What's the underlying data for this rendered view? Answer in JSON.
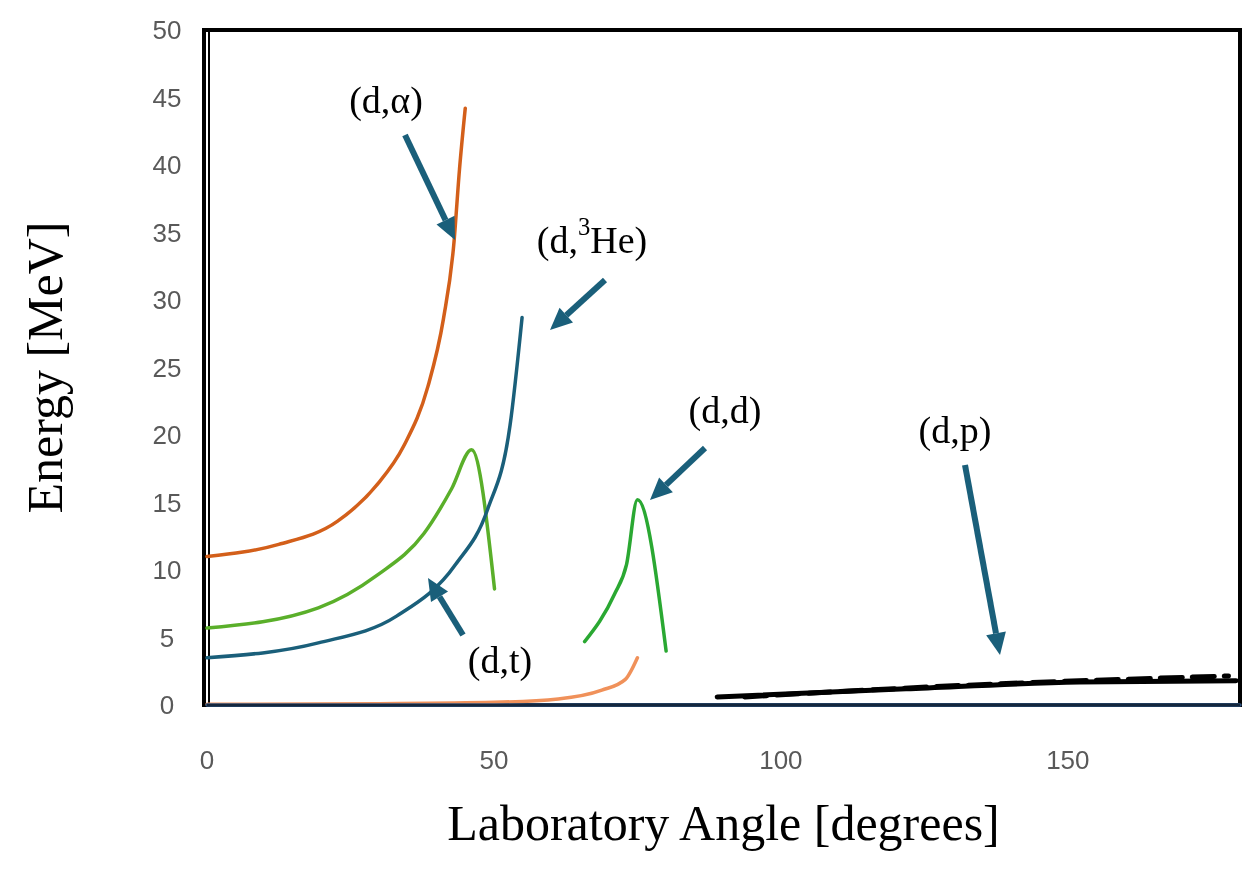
{
  "chart_data": {
    "type": "line",
    "xlabel": "Laboratory Angle [degrees]",
    "ylabel": "Energy [MeV]",
    "xlim": [
      0,
      180
    ],
    "ylim": [
      0,
      50
    ],
    "xticks": [
      0,
      50,
      100,
      150
    ],
    "yticks": [
      0,
      5,
      10,
      15,
      20,
      25,
      30,
      35,
      40,
      45,
      50
    ],
    "grid": false,
    "marker": "none",
    "series": [
      {
        "color": "#d35f1a",
        "x": [
          0,
          12.5,
          22.7,
          29.6,
          34.3,
          38.5,
          41.2,
          43,
          44,
          45
        ],
        "values": [
          11,
          11.9,
          13.6,
          16.3,
          19.2,
          23.6,
          28.6,
          34.1,
          39.7,
          44.2
        ]
      },
      {
        "color": "#5aaf2a",
        "x": [
          0,
          19.4,
          29.6,
          37.8,
          42.6,
          46.1,
          50.1
        ],
        "values": [
          5.7,
          7.2,
          9.6,
          12.7,
          16,
          18.9,
          8.6
        ]
      },
      {
        "color": "#1a5f7a",
        "x": [
          0,
          19.4,
          33.1,
          43.3,
          48.9,
          52.8,
          54.9
        ],
        "values": [
          3.5,
          4.6,
          6.6,
          10.4,
          14.5,
          20.7,
          28.7
        ]
      },
      {
        "color": "#2aa832",
        "x": [
          65.8,
          71,
          73.1,
          75,
          80
        ],
        "values": [
          4.7,
          8.2,
          10.4,
          15.2,
          4
        ]
      },
      {
        "color": "#f0915a",
        "x": [
          0,
          30,
          50,
          61.2,
          68.8,
          72.9,
          75
        ],
        "values": [
          0.05,
          0.1,
          0.2,
          0.45,
          1.1,
          1.9,
          3.5
        ]
      },
      {
        "color": "#000000",
        "x": [
          88.9,
          121.8,
          152,
          179.3
        ],
        "values": [
          0.6,
          1.2,
          1.7,
          1.8
        ]
      },
      {
        "color": "#000000",
        "line_style": "dashed",
        "x": [
          93.7,
          129,
          178
        ],
        "values": [
          0.6,
          1.4,
          2.15
        ]
      },
      {
        "color": "#2b4f7a",
        "x": [
          0,
          180
        ],
        "values": [
          0,
          0
        ]
      }
    ],
    "annotations": [
      "(d,α)",
      "(d,$^{3}$He)",
      "(d,d)",
      "(d,p)",
      "(d,t)"
    ]
  }
}
